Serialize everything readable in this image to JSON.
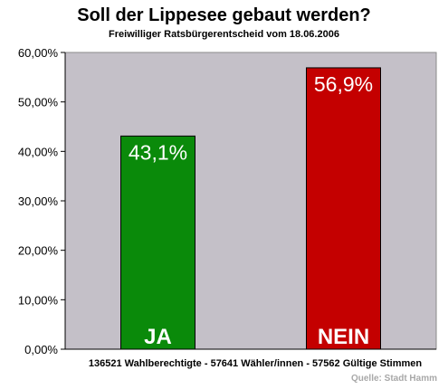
{
  "chart_data": {
    "type": "bar",
    "title": "Soll der Lippesee gebaut werden?",
    "subtitle": "Freiwilliger Ratsbürgerentscheid vom 18.06.2006",
    "categories": [
      "JA",
      "NEIN"
    ],
    "values": [
      43.1,
      56.9
    ],
    "value_labels": [
      "43,1%",
      "56,9%"
    ],
    "bar_colors": [
      "#0a8a0a",
      "#c40000"
    ],
    "plot_background": "#c4c0c8",
    "ylim": [
      0,
      60
    ],
    "yticks": [
      "0,00%",
      "10,00%",
      "20,00%",
      "30,00%",
      "40,00%",
      "50,00%",
      "60,00%"
    ],
    "xlabel": "136521 Wahlberechtigte - 57641 Wähler/innen - 57562 Gültige Stimmen",
    "source": "Quelle: Stadt Hamm",
    "grid": false,
    "legend": "none"
  }
}
